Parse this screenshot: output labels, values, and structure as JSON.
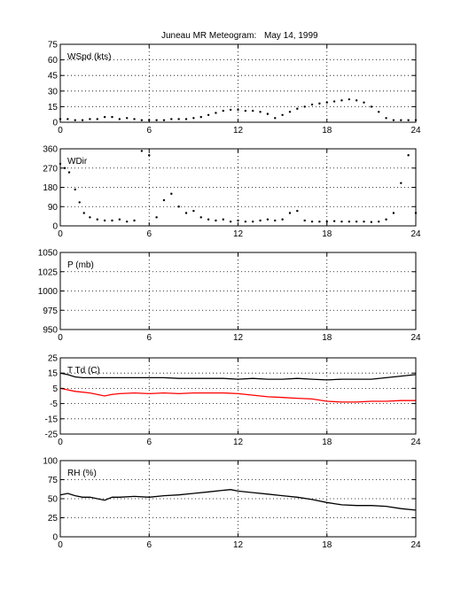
{
  "title": "Juneau MR Meteogram:",
  "date": "May 14, 1999",
  "chart_data": [
    {
      "type": "scatter",
      "label": "WSpd (kts)",
      "xlim": [
        0,
        24
      ],
      "ylim": [
        0,
        75
      ],
      "xticks": [
        0,
        6,
        12,
        18,
        24
      ],
      "yticks": [
        0,
        15,
        30,
        45,
        60,
        75
      ],
      "grid": true,
      "series": [
        {
          "color": "#000000",
          "x": [
            0,
            0.5,
            1,
            1.5,
            2,
            2.5,
            3,
            3.5,
            4,
            4.5,
            5,
            5.5,
            6,
            6.5,
            7,
            7.5,
            8,
            8.5,
            9,
            9.5,
            10,
            10.5,
            11,
            11.5,
            12,
            12.5,
            13,
            13.5,
            14,
            14.5,
            15,
            15.5,
            16,
            16.5,
            17,
            17.5,
            18,
            18.5,
            19,
            19.5,
            20,
            20.5,
            21,
            21.5,
            22,
            22.5,
            23,
            23.5,
            24
          ],
          "y": [
            3,
            3,
            2,
            2,
            3,
            3,
            5,
            5,
            3,
            4,
            3,
            2,
            2,
            2,
            2,
            3,
            3,
            3,
            4,
            5,
            7,
            9,
            11,
            12,
            12,
            11,
            11,
            10,
            8,
            4,
            7,
            10,
            13,
            15,
            17,
            18,
            19,
            20,
            21,
            22,
            21,
            19,
            15,
            10,
            4,
            2,
            2,
            2,
            2
          ]
        }
      ]
    },
    {
      "type": "scatter",
      "label": "WDir",
      "xlim": [
        0,
        24
      ],
      "ylim": [
        0,
        360
      ],
      "xticks": [
        0,
        6,
        12,
        18,
        24
      ],
      "yticks": [
        0,
        90,
        180,
        270,
        360
      ],
      "grid": true,
      "series": [
        {
          "color": "#000000",
          "x": [
            0,
            0.3,
            0.6,
            1,
            1.3,
            1.6,
            2,
            2.5,
            3,
            3.5,
            4,
            4.5,
            5,
            5.5,
            6,
            6.5,
            7,
            7.5,
            8,
            8.5,
            9,
            9.5,
            10,
            10.5,
            11,
            11.5,
            12,
            12.5,
            13,
            13.5,
            14,
            14.5,
            15,
            15.5,
            16,
            16.5,
            17,
            17.5,
            18,
            18.5,
            19,
            19.5,
            20,
            20.5,
            21,
            21.5,
            22,
            22.5,
            23,
            23.5,
            24
          ],
          "y": [
            290,
            270,
            250,
            170,
            110,
            60,
            40,
            30,
            25,
            25,
            30,
            20,
            25,
            350,
            330,
            40,
            120,
            150,
            90,
            60,
            70,
            40,
            30,
            25,
            30,
            20,
            25,
            20,
            20,
            25,
            30,
            25,
            30,
            60,
            70,
            25,
            20,
            20,
            20,
            22,
            20,
            20,
            20,
            20,
            18,
            20,
            30,
            60,
            200,
            330,
            60
          ]
        }
      ]
    },
    {
      "type": "line",
      "label": "P (mb)",
      "xlim": [
        0,
        24
      ],
      "ylim": [
        950,
        1050
      ],
      "xticks": [
        0,
        6,
        12,
        18,
        24
      ],
      "yticks": [
        950,
        975,
        1000,
        1025,
        1050
      ],
      "grid": true,
      "series": []
    },
    {
      "type": "line",
      "label": "T Td (C)",
      "xlim": [
        0,
        24
      ],
      "ylim": [
        -25,
        25
      ],
      "xticks": [
        0,
        6,
        12,
        18,
        24
      ],
      "yticks": [
        -25,
        -15,
        -5,
        5,
        15,
        25
      ],
      "grid": true,
      "series": [
        {
          "color": "#000000",
          "x": [
            0,
            0.5,
            1,
            1.5,
            2,
            3,
            4,
            5,
            6,
            7,
            8,
            9,
            10,
            11,
            12,
            13,
            14,
            15,
            16,
            17,
            18,
            19,
            20,
            21,
            22,
            23,
            24
          ],
          "y": [
            15,
            14,
            12.5,
            12,
            12,
            12,
            12,
            12,
            12,
            12,
            11.5,
            11.5,
            11.5,
            11.5,
            11,
            11.5,
            11,
            11,
            11.5,
            11,
            10.5,
            11,
            11,
            11,
            12,
            13,
            14
          ]
        },
        {
          "color": "#ff0000",
          "x": [
            0,
            0.5,
            1,
            2,
            3,
            3.5,
            4,
            5,
            6,
            7,
            8,
            9,
            10,
            11,
            12,
            13,
            14,
            15,
            16,
            17,
            18,
            19,
            20,
            21,
            22,
            23,
            24
          ],
          "y": [
            5,
            4,
            3,
            2,
            0,
            1,
            1.5,
            2,
            1.5,
            2,
            1.5,
            2,
            2,
            2,
            1.5,
            0.5,
            -0.5,
            -1,
            -1.5,
            -2,
            -3.5,
            -4,
            -4,
            -3.5,
            -3.5,
            -3,
            -3
          ]
        }
      ]
    },
    {
      "type": "line",
      "label": "RH (%)",
      "xlim": [
        0,
        24
      ],
      "ylim": [
        0,
        100
      ],
      "xticks": [
        0,
        6,
        12,
        18,
        24
      ],
      "yticks": [
        0,
        25,
        50,
        75,
        100
      ],
      "grid": true,
      "series": [
        {
          "color": "#000000",
          "x": [
            0,
            0.5,
            1,
            1.5,
            2,
            3,
            3.5,
            4,
            5,
            6,
            7,
            8,
            9,
            10,
            11,
            11.5,
            12,
            13,
            14,
            15,
            16,
            17,
            18,
            19,
            20,
            21,
            22,
            23,
            24
          ],
          "y": [
            55,
            57,
            54,
            52,
            52,
            48,
            52,
            52,
            53,
            52,
            54,
            55,
            57,
            59,
            61,
            62,
            60,
            58,
            56,
            54,
            52,
            49,
            45,
            42,
            41,
            41,
            40,
            37,
            35
          ]
        }
      ]
    }
  ]
}
